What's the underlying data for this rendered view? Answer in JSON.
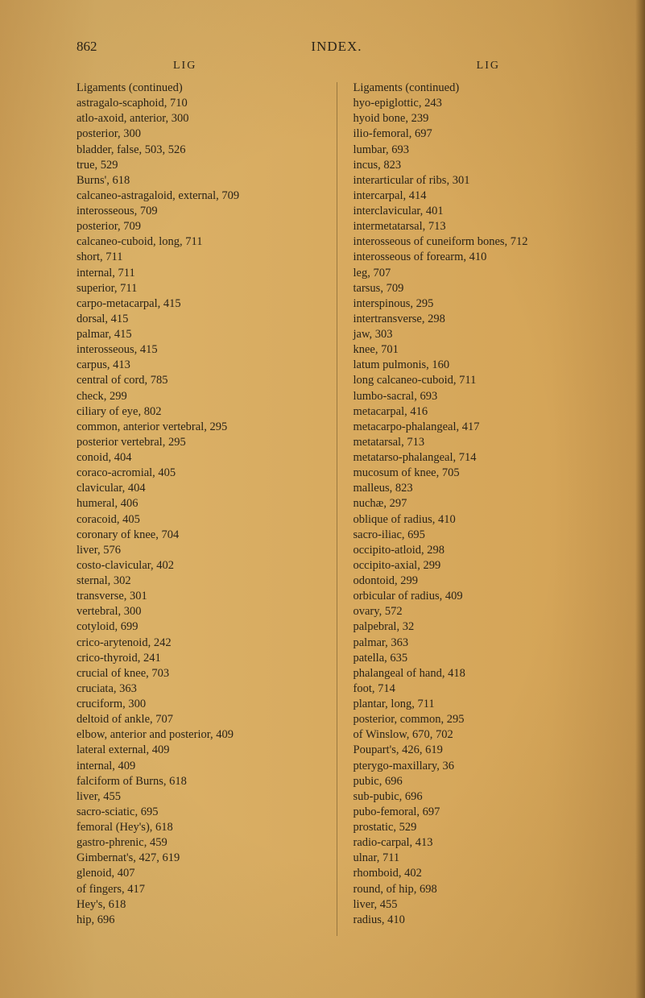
{
  "header": {
    "page_number": "862",
    "title": "INDEX."
  },
  "section_labels": {
    "left": "LIG",
    "right": "LIG"
  },
  "columns": {
    "left": {
      "main": "Ligaments (continued)",
      "entries": [
        {
          "t": "astragalo-scaphoid, 710",
          "i": 1
        },
        {
          "t": "atlo-axoid, anterior, 300",
          "i": 1
        },
        {
          "t": "posterior, 300",
          "i": 2
        },
        {
          "t": "bladder, false, 503, 526",
          "i": 1
        },
        {
          "t": "true, 529",
          "i": 2
        },
        {
          "t": "Burns', 618",
          "i": 1
        },
        {
          "t": "calcaneo-astragaloid, external, 709",
          "i": 1
        },
        {
          "t": "interosseous, 709",
          "i": 2
        },
        {
          "t": "posterior, 709",
          "i": 2
        },
        {
          "t": "calcaneo-cuboid, long, 711",
          "i": 1
        },
        {
          "t": "short, 711",
          "i": 2
        },
        {
          "t": "internal, 711",
          "i": 2
        },
        {
          "t": "superior, 711",
          "i": 2
        },
        {
          "t": "carpo-metacarpal, 415",
          "i": 1
        },
        {
          "t": "dorsal, 415",
          "i": 2
        },
        {
          "t": "palmar, 415",
          "i": 2
        },
        {
          "t": "interosseous, 415",
          "i": 2
        },
        {
          "t": "carpus, 413",
          "i": 1
        },
        {
          "t": "central of cord, 785",
          "i": 1
        },
        {
          "t": "check, 299",
          "i": 1
        },
        {
          "t": "ciliary of eye, 802",
          "i": 1
        },
        {
          "t": "common, anterior vertebral, 295",
          "i": 1
        },
        {
          "t": "posterior vertebral, 295",
          "i": 2
        },
        {
          "t": "conoid, 404",
          "i": 1
        },
        {
          "t": "coraco-acromial, 405",
          "i": 1
        },
        {
          "t": "clavicular, 404",
          "i": 2
        },
        {
          "t": "humeral, 406",
          "i": 2
        },
        {
          "t": "coracoid, 405",
          "i": 1
        },
        {
          "t": "coronary of knee, 704",
          "i": 1
        },
        {
          "t": "liver, 576",
          "i": 2
        },
        {
          "t": "costo-clavicular, 402",
          "i": 1
        },
        {
          "t": "sternal, 302",
          "i": 2
        },
        {
          "t": "transverse, 301",
          "i": 2
        },
        {
          "t": "vertebral, 300",
          "i": 2
        },
        {
          "t": "cotyloid, 699",
          "i": 1
        },
        {
          "t": "crico-arytenoid, 242",
          "i": 1
        },
        {
          "t": "crico-thyroid, 241",
          "i": 1
        },
        {
          "t": "crucial of knee, 703",
          "i": 1
        },
        {
          "t": "cruciata, 363",
          "i": 1
        },
        {
          "t": "cruciform, 300",
          "i": 1
        },
        {
          "t": "deltoid of ankle, 707",
          "i": 1
        },
        {
          "t": "elbow, anterior and posterior, 409",
          "i": 1
        },
        {
          "t": "lateral external, 409",
          "i": 2
        },
        {
          "t": "internal, 409",
          "i": 3
        },
        {
          "t": "falciform of Burns, 618",
          "i": 1
        },
        {
          "t": "liver, 455",
          "i": 2
        },
        {
          "t": "sacro-sciatic, 695",
          "i": 2
        },
        {
          "t": "femoral (Hey's), 618",
          "i": 1
        },
        {
          "t": "gastro-phrenic, 459",
          "i": 1
        },
        {
          "t": "Gimbernat's, 427, 619",
          "i": 1
        },
        {
          "t": "glenoid, 407",
          "i": 1
        },
        {
          "t": "of fingers, 417",
          "i": 2
        },
        {
          "t": "Hey's, 618",
          "i": 1
        },
        {
          "t": "hip, 696",
          "i": 1
        }
      ]
    },
    "right": {
      "main": "Ligaments (continued)",
      "entries": [
        {
          "t": "hyo-epiglottic, 243",
          "i": 1
        },
        {
          "t": "hyoid bone, 239",
          "i": 1
        },
        {
          "t": "ilio-femoral, 697",
          "i": 1
        },
        {
          "t": "lumbar, 693",
          "i": 2
        },
        {
          "t": "incus, 823",
          "i": 1
        },
        {
          "t": "interarticular of ribs, 301",
          "i": 1
        },
        {
          "t": "intercarpal, 414",
          "i": 1
        },
        {
          "t": "interclavicular, 401",
          "i": 1
        },
        {
          "t": "intermetatarsal, 713",
          "i": 1
        },
        {
          "t": "interosseous of cuneiform bones, 712",
          "i": 1
        },
        {
          "t": "interosseous of forearm, 410",
          "i": 1
        },
        {
          "t": "leg, 707",
          "i": 2
        },
        {
          "t": "tarsus, 709",
          "i": 2
        },
        {
          "t": "interspinous, 295",
          "i": 1
        },
        {
          "t": "intertransverse, 298",
          "i": 1
        },
        {
          "t": "jaw, 303",
          "i": 1
        },
        {
          "t": "knee, 701",
          "i": 1
        },
        {
          "t": "latum pulmonis, 160",
          "i": 1
        },
        {
          "t": "long calcaneo-cuboid, 711",
          "i": 1
        },
        {
          "t": "lumbo-sacral, 693",
          "i": 1
        },
        {
          "t": "metacarpal, 416",
          "i": 1
        },
        {
          "t": "metacarpo-phalangeal, 417",
          "i": 1
        },
        {
          "t": "metatarsal, 713",
          "i": 1
        },
        {
          "t": "metatarso-phalangeal, 714",
          "i": 1
        },
        {
          "t": "mucosum of knee, 705",
          "i": 1
        },
        {
          "t": "malleus, 823",
          "i": 1
        },
        {
          "t": "nuchæ, 297",
          "i": 1
        },
        {
          "t": "oblique of radius, 410",
          "i": 1
        },
        {
          "t": "sacro-iliac, 695",
          "i": 2
        },
        {
          "t": "occipito-atloid, 298",
          "i": 1
        },
        {
          "t": "occipito-axial, 299",
          "i": 1
        },
        {
          "t": "odontoid, 299",
          "i": 1
        },
        {
          "t": "orbicular of radius, 409",
          "i": 1
        },
        {
          "t": "ovary, 572",
          "i": 1
        },
        {
          "t": "palpebral, 32",
          "i": 1
        },
        {
          "t": "palmar, 363",
          "i": 1
        },
        {
          "t": "patella, 635",
          "i": 1
        },
        {
          "t": "phalangeal of hand, 418",
          "i": 1
        },
        {
          "t": "foot, 714",
          "i": 2
        },
        {
          "t": "plantar, long, 711",
          "i": 1
        },
        {
          "t": "posterior, common, 295",
          "i": 1
        },
        {
          "t": "of Winslow, 670, 702",
          "i": 2
        },
        {
          "t": "Poupart's, 426, 619",
          "i": 1
        },
        {
          "t": "pterygo-maxillary, 36",
          "i": 1
        },
        {
          "t": "pubic, 696",
          "i": 1
        },
        {
          "t": "sub-pubic, 696",
          "i": 2
        },
        {
          "t": "pubo-femoral, 697",
          "i": 1
        },
        {
          "t": "prostatic, 529",
          "i": 2
        },
        {
          "t": "radio-carpal, 413",
          "i": 1
        },
        {
          "t": "ulnar, 711",
          "i": 2
        },
        {
          "t": "rhomboid, 402",
          "i": 1
        },
        {
          "t": "round, of hip, 698",
          "i": 1
        },
        {
          "t": "liver, 455",
          "i": 2
        },
        {
          "t": "radius, 410",
          "i": 2
        }
      ]
    }
  }
}
